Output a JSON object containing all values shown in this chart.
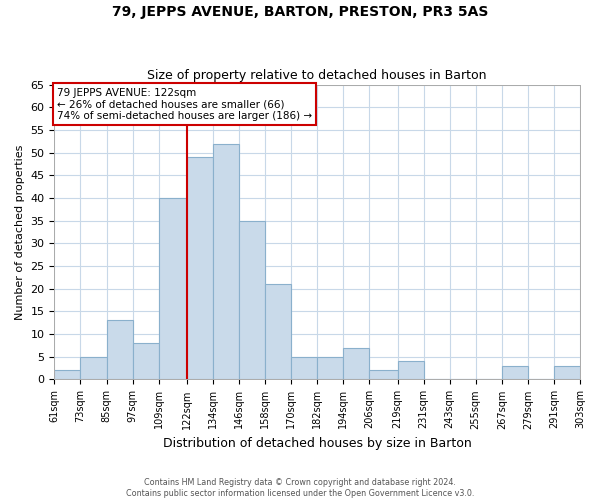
{
  "title": "79, JEPPS AVENUE, BARTON, PRESTON, PR3 5AS",
  "subtitle": "Size of property relative to detached houses in Barton",
  "xlabel": "Distribution of detached houses by size in Barton",
  "ylabel": "Number of detached properties",
  "bar_color": "#c9daea",
  "bar_edge_color": "#8ab0cc",
  "vline_color": "#cc0000",
  "vline_x": 122,
  "bin_edges": [
    61,
    73,
    85,
    97,
    109,
    122,
    134,
    146,
    158,
    170,
    182,
    194,
    206,
    219,
    231,
    243,
    255,
    267,
    279,
    291,
    303
  ],
  "bin_labels": [
    "61sqm",
    "73sqm",
    "85sqm",
    "97sqm",
    "109sqm",
    "122sqm",
    "134sqm",
    "146sqm",
    "158sqm",
    "170sqm",
    "182sqm",
    "194sqm",
    "206sqm",
    "219sqm",
    "231sqm",
    "243sqm",
    "255sqm",
    "267sqm",
    "279sqm",
    "291sqm",
    "303sqm"
  ],
  "bar_heights": [
    2,
    5,
    13,
    8,
    40,
    49,
    52,
    35,
    21,
    5,
    5,
    7,
    2,
    4,
    0,
    0,
    0,
    3,
    0,
    3
  ],
  "ylim": [
    0,
    65
  ],
  "yticks": [
    0,
    5,
    10,
    15,
    20,
    25,
    30,
    35,
    40,
    45,
    50,
    55,
    60,
    65
  ],
  "annotation_title": "79 JEPPS AVENUE: 122sqm",
  "annotation_line1": "← 26% of detached houses are smaller (66)",
  "annotation_line2": "74% of semi-detached houses are larger (186) →",
  "annotation_box_color": "#ffffff",
  "annotation_box_edge": "#cc0000",
  "footer1": "Contains HM Land Registry data © Crown copyright and database right 2024.",
  "footer2": "Contains public sector information licensed under the Open Government Licence v3.0.",
  "grid_color": "#c8d8e8",
  "background_color": "#ffffff",
  "plot_bg_color": "#ffffff"
}
